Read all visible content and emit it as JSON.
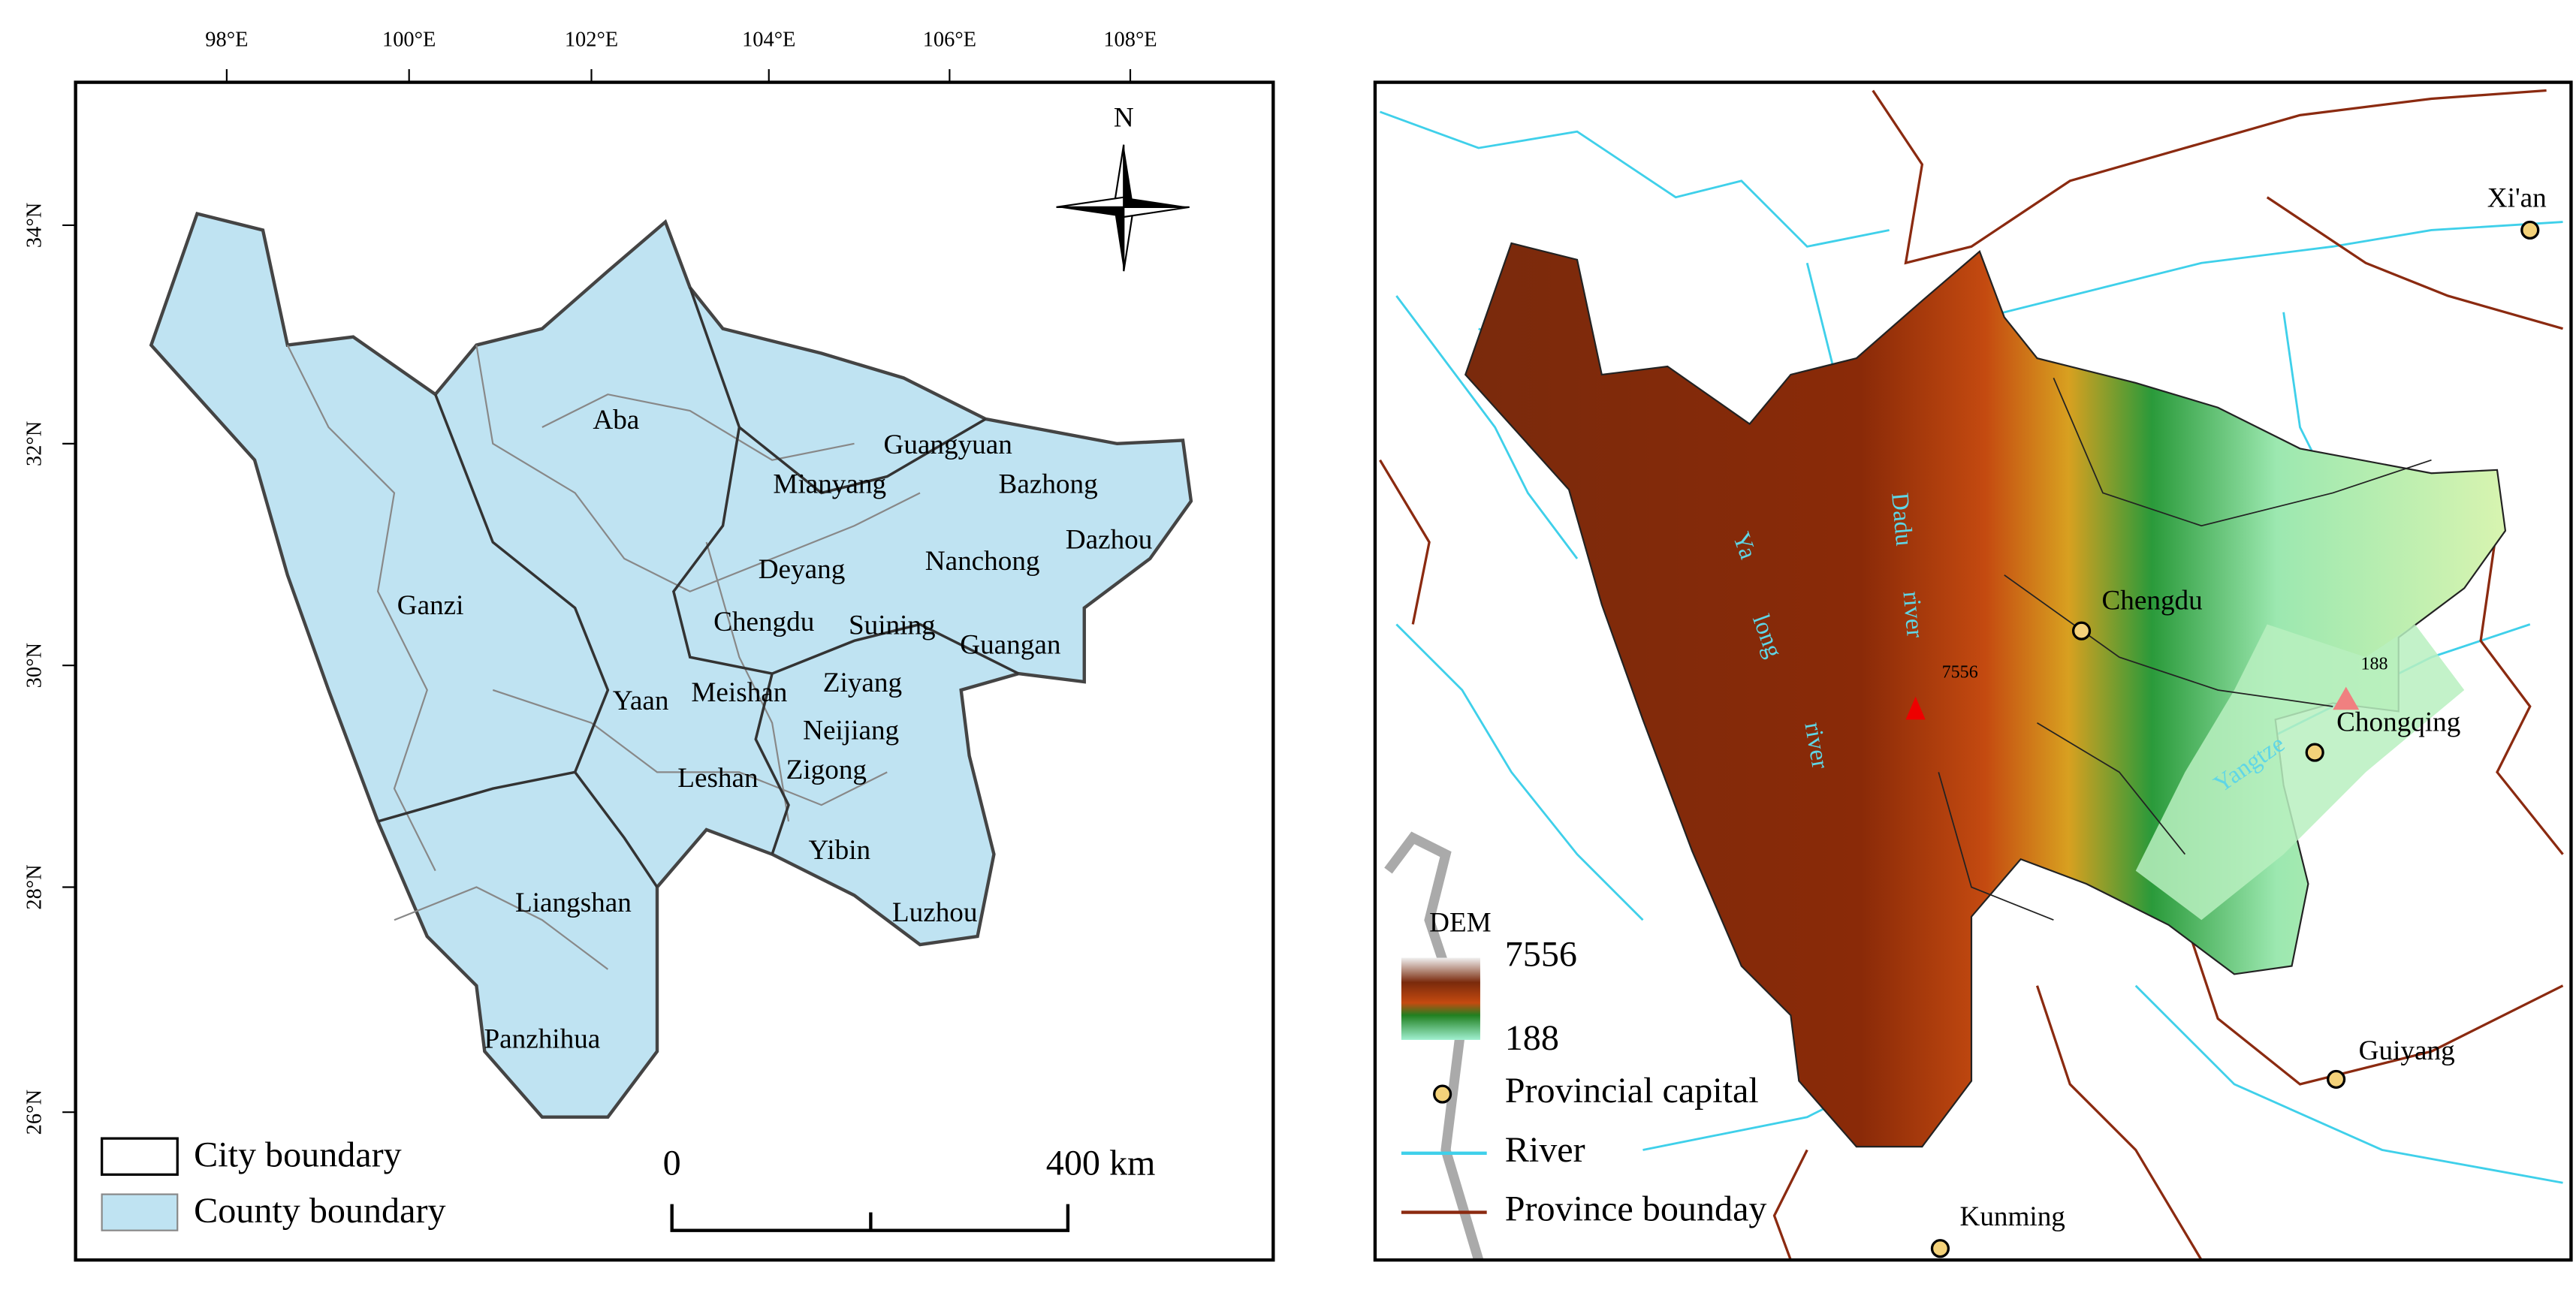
{
  "left_map": {
    "longitude_labels": [
      "98°E",
      "100°E",
      "102°E",
      "104°E",
      "106°E",
      "108°E"
    ],
    "latitude_labels": [
      "34°N",
      "32°N",
      "30°N",
      "28°N",
      "26°N"
    ],
    "north": "N",
    "city_labels": [
      "Aba",
      "Guangyuan",
      "Mianyang",
      "Bazhong",
      "Dazhou",
      "Deyang",
      "Nanchong",
      "Ganzi",
      "Chengdu",
      "Suining",
      "Guangan",
      "Yaan",
      "Meishan",
      "Ziyang",
      "Neijiang",
      "Leshan",
      "Zigong",
      "Yibin",
      "Luzhou",
      "Liangshan",
      "Panzhihua"
    ],
    "legend": [
      "City boundary",
      "County boundary"
    ],
    "scale_bar": [
      "0",
      "400 km"
    ]
  },
  "right_map": {
    "place_labels": [
      "Xi'an",
      "Chengdu",
      "Chongqing",
      "Guiyang",
      "Kunming"
    ],
    "river_labels": [
      "Ya",
      "long",
      "river",
      "Dadu",
      "river",
      "Yangtze"
    ],
    "peak_labels": [
      7556,
      188
    ],
    "legend": {
      "title": "DEM",
      "max": 7556,
      "min": 188,
      "items": [
        "Provincial capital",
        "River",
        "Province bounday"
      ]
    }
  }
}
